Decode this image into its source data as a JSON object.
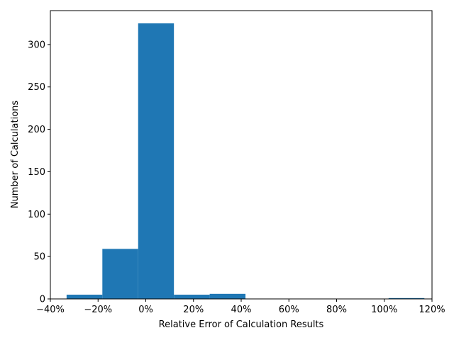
{
  "chart_data": {
    "type": "bar",
    "subtype": "histogram",
    "title": "",
    "xlabel": "Relative Error of Calculation Results",
    "ylabel": "Number of Calculations",
    "bar_color": "#1f77b4",
    "grid": false,
    "xlim": [
      -40,
      120
    ],
    "ylim": [
      0,
      340
    ],
    "x_ticks": [
      {
        "value": -40,
        "label": "−40%"
      },
      {
        "value": -20,
        "label": "−20%"
      },
      {
        "value": 0,
        "label": "0%"
      },
      {
        "value": 20,
        "label": "20%"
      },
      {
        "value": 40,
        "label": "40%"
      },
      {
        "value": 60,
        "label": "60%"
      },
      {
        "value": 80,
        "label": "80%"
      },
      {
        "value": 100,
        "label": "100%"
      },
      {
        "value": 120,
        "label": "120%"
      }
    ],
    "y_ticks": [
      {
        "value": 0,
        "label": "0"
      },
      {
        "value": 50,
        "label": "50"
      },
      {
        "value": 100,
        "label": "100"
      },
      {
        "value": 150,
        "label": "150"
      },
      {
        "value": 200,
        "label": "200"
      },
      {
        "value": 250,
        "label": "250"
      },
      {
        "value": 300,
        "label": "300"
      }
    ],
    "bins": [
      {
        "start": -33.2,
        "end": -18.2,
        "count": 5
      },
      {
        "start": -18.2,
        "end": -3.2,
        "count": 59
      },
      {
        "start": -3.2,
        "end": 11.8,
        "count": 325
      },
      {
        "start": 11.8,
        "end": 26.8,
        "count": 5
      },
      {
        "start": 26.8,
        "end": 41.8,
        "count": 6
      },
      {
        "start": 41.8,
        "end": 56.8,
        "count": 0
      },
      {
        "start": 56.8,
        "end": 71.8,
        "count": 0
      },
      {
        "start": 71.8,
        "end": 86.8,
        "count": 0
      },
      {
        "start": 86.8,
        "end": 101.8,
        "count": 0
      },
      {
        "start": 101.8,
        "end": 116.8,
        "count": 1
      }
    ]
  }
}
